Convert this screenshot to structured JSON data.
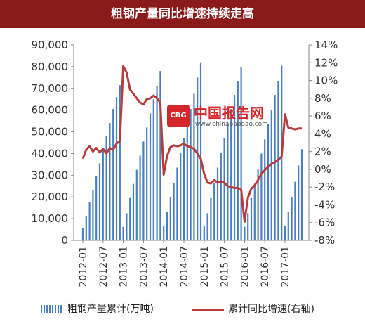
{
  "title": "粗钢产量同比增速持续走高",
  "watermark": {
    "cn": "中国报告网",
    "en": "www.chinabaogao.com",
    "logo": "CBG"
  },
  "legend": {
    "bar_label": "粗钢产量累计(万吨)",
    "line_label": "累计同比增速(右轴)"
  },
  "colors": {
    "bar": "#4a7fc1",
    "line": "#b83c3c",
    "title_bg": "#8b1a1a"
  },
  "chart_data": {
    "type": "bar+line",
    "x_tick_labels": [
      "2012-01",
      "2012-07",
      "2013-01",
      "2013-07",
      "2014-01",
      "2014-07",
      "2015-01",
      "2015-07",
      "2016-01",
      "2016-07",
      "2017-01"
    ],
    "left_axis": {
      "min": 0,
      "max": 90000,
      "ticks": [
        "0",
        "10,000",
        "20,000",
        "30,000",
        "40,000",
        "50,000",
        "60,000",
        "70,000",
        "80,000",
        "90,000"
      ]
    },
    "right_axis": {
      "min": -8,
      "max": 14,
      "ticks": [
        "-8%",
        "-6%",
        "-4%",
        "-2%",
        "0%",
        "2%",
        "4%",
        "6%",
        "8%",
        "10%",
        "12%",
        "14%"
      ]
    },
    "months": [
      "2012-01",
      "2012-02",
      "2012-03",
      "2012-04",
      "2012-05",
      "2012-06",
      "2012-07",
      "2012-08",
      "2012-09",
      "2012-10",
      "2012-11",
      "2012-12",
      "2013-01",
      "2013-02",
      "2013-03",
      "2013-04",
      "2013-05",
      "2013-06",
      "2013-07",
      "2013-08",
      "2013-09",
      "2013-10",
      "2013-11",
      "2013-12",
      "2014-01",
      "2014-02",
      "2014-03",
      "2014-04",
      "2014-05",
      "2014-06",
      "2014-07",
      "2014-08",
      "2014-09",
      "2014-10",
      "2014-11",
      "2014-12",
      "2015-01",
      "2015-02",
      "2015-03",
      "2015-04",
      "2015-05",
      "2015-06",
      "2015-07",
      "2015-08",
      "2015-09",
      "2015-10",
      "2015-11",
      "2015-12",
      "2016-01",
      "2016-02",
      "2016-03",
      "2016-04",
      "2016-05",
      "2016-06",
      "2016-07",
      "2016-08",
      "2016-09",
      "2016-10",
      "2016-11",
      "2016-12",
      "2017-01",
      "2017-02",
      "2017-03",
      "2017-04",
      "2017-05",
      "2017-06"
    ],
    "series": [
      {
        "name": "粗钢产量累计(万吨)",
        "kind": "bar",
        "axis": "left",
        "values": [
          5500,
          11000,
          17500,
          23000,
          29500,
          35500,
          41500,
          48000,
          54000,
          60500,
          66000,
          71500,
          6200,
          12500,
          19500,
          26000,
          32500,
          39000,
          45500,
          52000,
          58500,
          65000,
          71000,
          78000,
          6500,
          13000,
          20000,
          26500,
          33500,
          40500,
          47000,
          54000,
          60500,
          67500,
          75000,
          82000,
          6500,
          12500,
          19500,
          26500,
          33500,
          40500,
          47000,
          54000,
          60500,
          67000,
          73500,
          80000,
          6300,
          12500,
          19500,
          26000,
          33000,
          40000,
          46500,
          53500,
          60000,
          67000,
          73500,
          80500,
          6500,
          13000,
          20000,
          27000,
          34500,
          42000
        ]
      },
      {
        "name": "累计同比增速(右轴)",
        "kind": "line",
        "axis": "right",
        "values": [
          1.2,
          2.2,
          2.6,
          2.0,
          2.4,
          1.9,
          2.3,
          1.8,
          2.4,
          2.2,
          2.9,
          3.2,
          11.6,
          10.9,
          9.0,
          8.5,
          8.0,
          7.5,
          7.3,
          7.9,
          8.0,
          8.3,
          8.0,
          7.5,
          -0.6,
          1.5,
          2.5,
          2.7,
          2.6,
          2.7,
          2.9,
          2.6,
          2.5,
          2.3,
          1.8,
          1.2,
          -0.5,
          -1.5,
          -1.6,
          -1.2,
          -1.5,
          -1.4,
          -1.5,
          -1.9,
          -2.0,
          -2.1,
          -2.1,
          -2.3,
          -5.9,
          -3.2,
          -2.2,
          -1.8,
          -1.2,
          -0.5,
          -0.1,
          0.3,
          0.6,
          0.8,
          1.1,
          1.4,
          6.2,
          4.7,
          4.6,
          4.5,
          4.6,
          4.6
        ]
      }
    ],
    "legend_position": "bottom",
    "grid": false
  }
}
